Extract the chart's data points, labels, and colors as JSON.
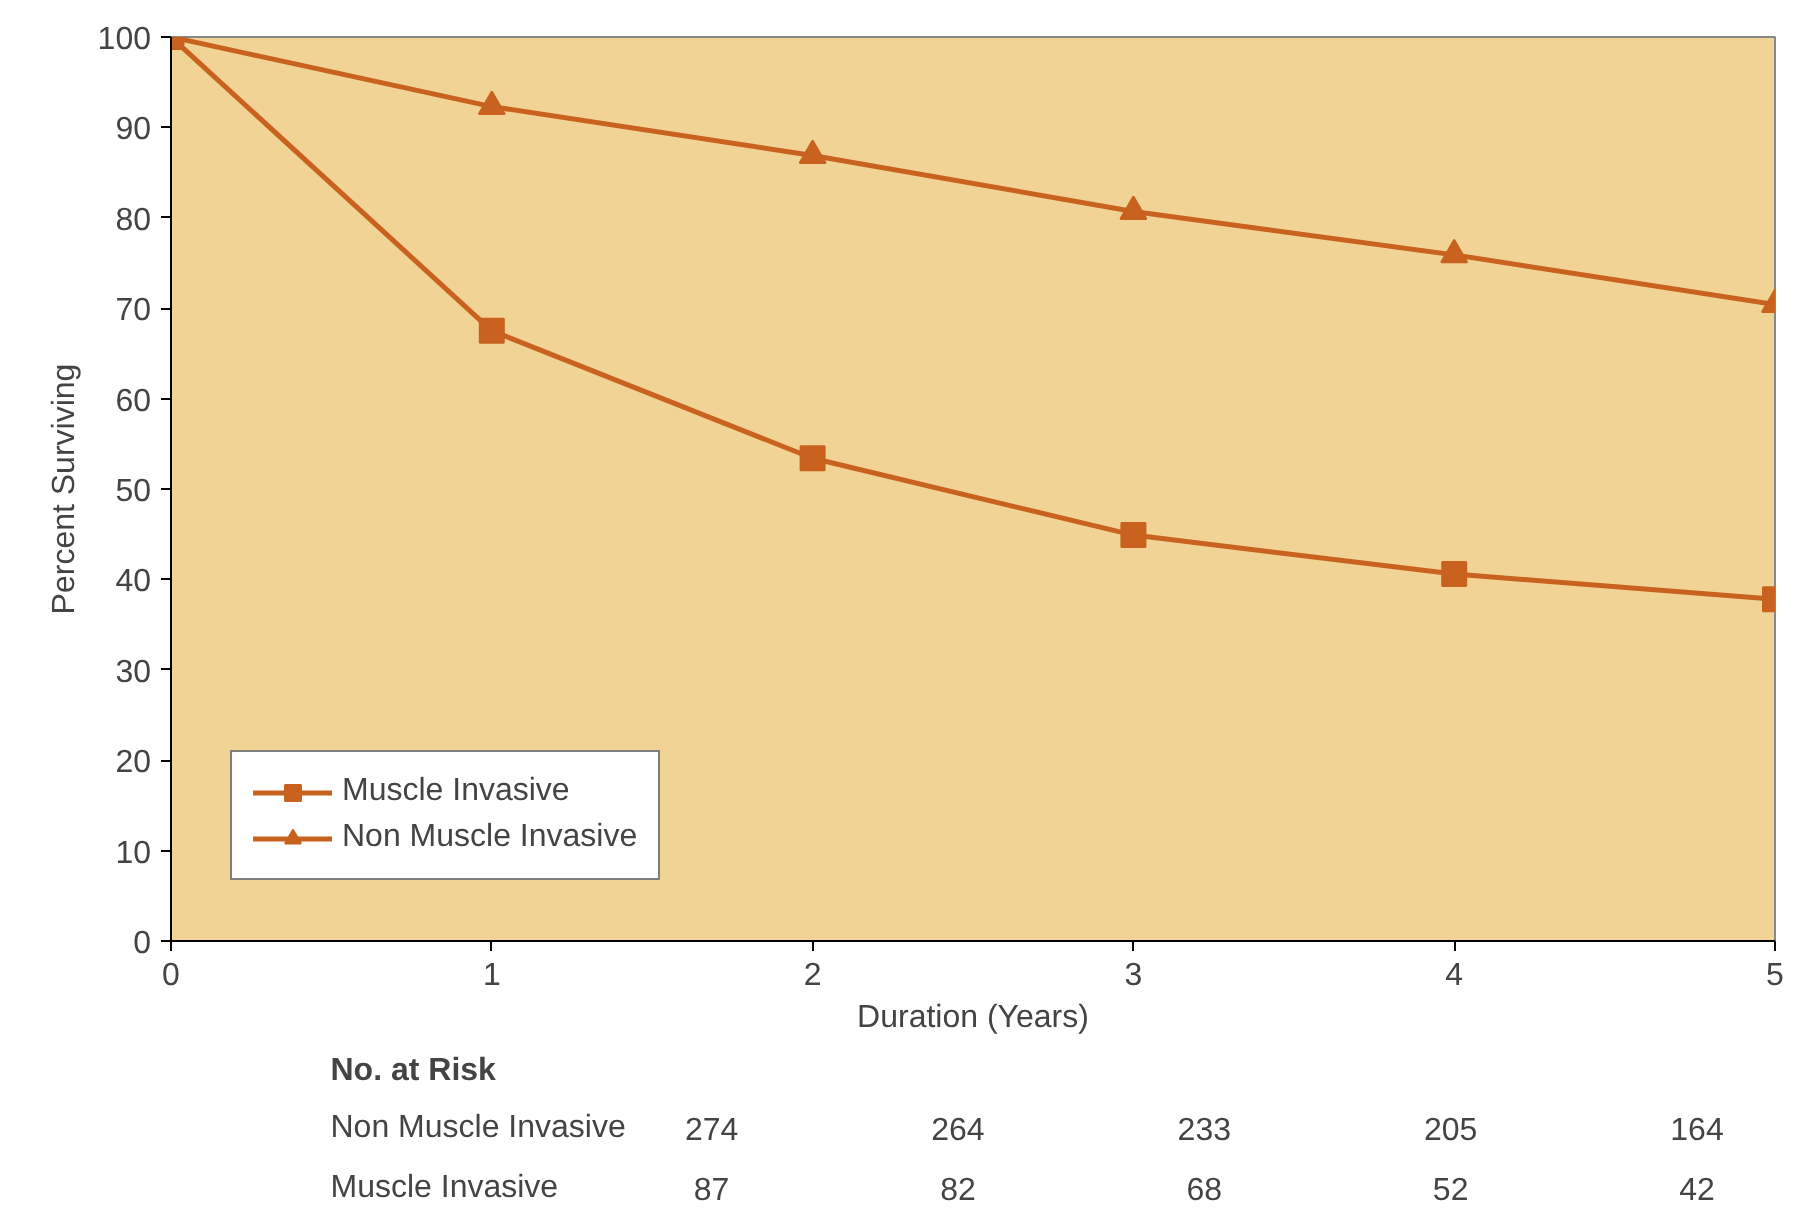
{
  "chart_data": {
    "type": "line",
    "xlabel": "Duration (Years)",
    "ylabel": "Percent Surviving",
    "x": [
      0,
      1,
      2,
      3,
      4,
      5
    ],
    "series": [
      {
        "name": "Muscle Invasive",
        "color": "#c8621e",
        "marker": "square",
        "values": [
          100,
          67.5,
          53.4,
          44.9,
          40.6,
          37.8
        ]
      },
      {
        "name": "Non Muscle Invasive",
        "color": "#c8621e",
        "marker": "triangle",
        "values": [
          100,
          92.3,
          86.9,
          80.7,
          75.9,
          70.4
        ]
      }
    ],
    "xlim": [
      0,
      5
    ],
    "ylim": [
      0,
      100
    ],
    "xticks": [
      0,
      1,
      2,
      3,
      4,
      5
    ],
    "yticks": [
      0,
      10,
      20,
      30,
      40,
      50,
      60,
      70,
      80,
      90,
      100
    ],
    "grid": false,
    "legend": "bottom left",
    "line_style": "solid",
    "annotations": [
      "No. at Risk",
      "Non Muscle Invasive",
      "274",
      "264",
      "233",
      "205",
      "164",
      "Muscle Invasive",
      "87",
      "82",
      "68",
      "52",
      "42"
    ]
  }
}
